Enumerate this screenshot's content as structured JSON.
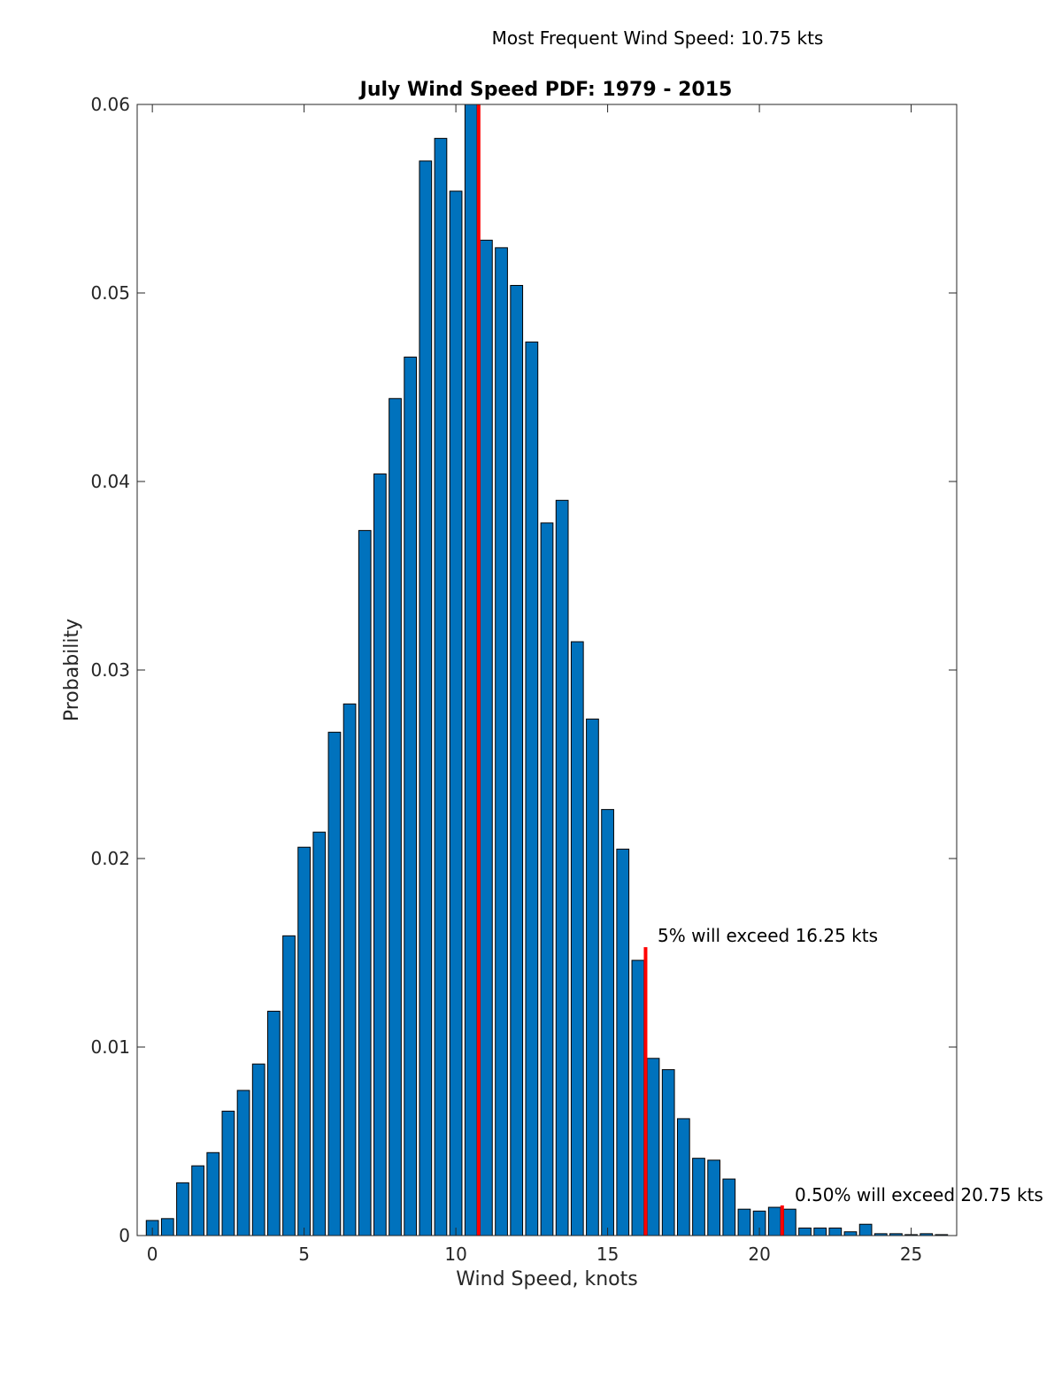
{
  "chart_data": {
    "type": "bar",
    "title": "July Wind Speed PDF: 1979 - 2015",
    "subtitle": "Most Frequent Wind Speed: 10.75 kts",
    "xlabel": "Wind Speed, knots",
    "ylabel": "Probability",
    "xlim": [
      -0.5,
      26.5
    ],
    "ylim": [
      0,
      0.06
    ],
    "xticks": [
      0,
      5,
      10,
      15,
      20,
      25
    ],
    "yticks": [
      0,
      0.01,
      0.02,
      0.03,
      0.04,
      0.05,
      0.06
    ],
    "xtick_labels": [
      "0",
      "5",
      "10",
      "15",
      "20",
      "25"
    ],
    "ytick_labels": [
      "0",
      "0.01",
      "0.02",
      "0.03",
      "0.04",
      "0.05",
      "0.06"
    ],
    "grid": false,
    "bar_color": "#0072BD",
    "marker_color": "#FF0000",
    "series": [
      {
        "x": [
          0,
          0.5,
          1,
          1.5,
          2,
          2.5,
          3,
          3.5,
          4,
          4.5,
          5,
          5.5,
          6,
          6.5,
          7,
          7.5,
          8,
          8.5,
          9,
          9.5,
          10,
          10.5,
          11,
          11.5,
          12,
          12.5,
          13,
          13.5,
          14,
          14.5,
          15,
          15.5,
          16,
          16.5,
          17,
          17.5,
          18,
          18.5,
          19,
          19.5,
          20,
          20.5,
          21,
          21.5,
          22,
          22.5,
          23,
          23.5,
          24,
          24.5,
          25,
          25.5,
          26
        ],
        "values": [
          0.0008,
          0.0009,
          0.0028,
          0.0037,
          0.0044,
          0.0066,
          0.0077,
          0.0091,
          0.0119,
          0.0159,
          0.0206,
          0.0214,
          0.0267,
          0.0282,
          0.0374,
          0.0404,
          0.0444,
          0.0466,
          0.057,
          0.0582,
          0.0554,
          0.0601,
          0.0528,
          0.0524,
          0.0504,
          0.0474,
          0.0378,
          0.039,
          0.0315,
          0.0274,
          0.0226,
          0.0205,
          0.0146,
          0.0094,
          0.0088,
          0.0062,
          0.0041,
          0.004,
          0.003,
          0.0014,
          0.0013,
          0.0015,
          0.0014,
          0.0004,
          0.0004,
          0.0004,
          0.0002,
          0.0006,
          0.0001,
          0.0001,
          5e-05,
          0.0001,
          5e-05
        ]
      }
    ],
    "markers": [
      {
        "x": 10.75,
        "y": 0.06,
        "label": ""
      },
      {
        "x": 16.25,
        "y": 0.0153,
        "label": "5% will exceed 16.25 kts"
      },
      {
        "x": 20.75,
        "y": 0.0016,
        "label": "0.50% will exceed 20.75 kts"
      }
    ]
  }
}
